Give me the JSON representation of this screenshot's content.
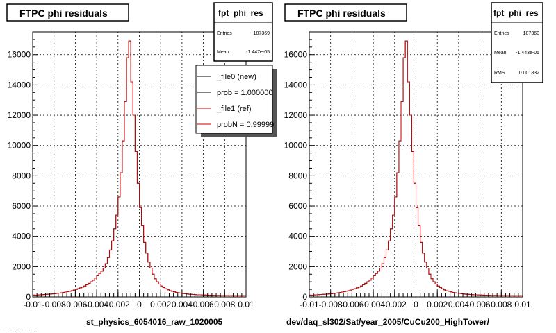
{
  "panels": [
    {
      "title": "FTPC phi residuals",
      "stats": {
        "name": "fpt_phi_res",
        "rows": [
          {
            "label": "Entries",
            "value": "187369"
          },
          {
            "label": "Mean",
            "value": "-1.447e-05"
          }
        ]
      },
      "legend": {
        "entries": [
          {
            "label": "_file0 (new)",
            "color": "#000000"
          },
          {
            "label": "prob = 1.000000",
            "color": "#000000"
          },
          {
            "label": "_file1 (ref)",
            "color": "#cc0000"
          },
          {
            "label": "probN = 0.99999",
            "color": "#cc0000"
          }
        ]
      },
      "caption": "st_physics_6054016_raw_1020005"
    },
    {
      "title": "FTPC phi residuals",
      "stats": {
        "name": "fpt_phi_res",
        "rows": [
          {
            "label": "Entries",
            "value": "187360"
          },
          {
            "label": "Mean",
            "value": "-1.443e-05"
          },
          {
            "label": "RMS",
            "value": "0.001832"
          }
        ]
      },
      "caption": "dev/daq_sl302/Sat/year_2005/CuCu200_HighTower/"
    }
  ],
  "footer_text": "... ... .. ........ ....",
  "chart_data": {
    "type": "histogram",
    "title": "FTPC phi residuals",
    "xlim": [
      -0.01,
      0.01
    ],
    "ylim": [
      0,
      17500
    ],
    "xticks": [
      -0.01,
      -0.008,
      -0.006,
      -0.004,
      -0.002,
      0,
      0.002,
      0.004,
      0.006,
      0.008,
      0.01
    ],
    "xtick_labels": [
      "-0.01",
      "-0.008",
      "-0.006",
      "-0.004",
      "-0.002",
      "0",
      "0.002",
      "0.004",
      "0.006",
      "0.008",
      "0.01"
    ],
    "yticks": [
      0,
      2000,
      4000,
      6000,
      8000,
      10000,
      12000,
      14000,
      16000
    ],
    "ytick_labels": [
      "0",
      "2000",
      "4000",
      "6000",
      "8000",
      "10000",
      "12000",
      "14000",
      "16000"
    ],
    "grid": true,
    "bin_width": 0.0002,
    "x_start": -0.01,
    "series": [
      {
        "name": "_file0 (new)",
        "color": "#000000",
        "values": [
          120,
          110,
          130,
          140,
          150,
          160,
          170,
          180,
          190,
          200,
          210,
          230,
          250,
          270,
          290,
          320,
          350,
          380,
          410,
          450,
          500,
          550,
          600,
          650,
          720,
          800,
          900,
          1000,
          1100,
          1250,
          1400,
          1550,
          1700,
          1900,
          2200,
          2600,
          3100,
          3700,
          4500,
          5400,
          6600,
          8200,
          10300,
          12900,
          15800,
          16900,
          14200,
          12000,
          9600,
          7500,
          5900,
          4700,
          3600,
          2900,
          2300,
          1900,
          1500,
          1200,
          1000,
          850,
          720,
          620,
          540,
          470,
          410,
          370,
          330,
          300,
          270,
          250,
          230,
          210,
          195,
          180,
          170,
          160,
          150,
          140,
          135,
          130,
          125,
          120,
          115,
          110,
          105,
          100,
          100,
          95,
          90,
          90,
          85,
          85,
          80,
          80,
          80,
          80,
          80,
          80,
          80,
          80
        ]
      },
      {
        "name": "_file1 (ref)",
        "color": "#cc0000",
        "values": [
          120,
          110,
          130,
          140,
          150,
          160,
          170,
          180,
          190,
          200,
          210,
          230,
          250,
          270,
          290,
          320,
          350,
          380,
          410,
          450,
          500,
          550,
          600,
          650,
          720,
          800,
          900,
          1000,
          1100,
          1250,
          1400,
          1550,
          1700,
          1900,
          2200,
          2600,
          3100,
          3700,
          4500,
          5400,
          6600,
          8200,
          10300,
          12900,
          15800,
          16900,
          14200,
          12000,
          9600,
          7500,
          5900,
          4700,
          3600,
          2900,
          2300,
          1900,
          1500,
          1200,
          1000,
          850,
          720,
          620,
          540,
          470,
          410,
          370,
          330,
          300,
          270,
          250,
          230,
          210,
          195,
          180,
          170,
          160,
          150,
          140,
          135,
          130,
          125,
          120,
          115,
          110,
          105,
          100,
          100,
          95,
          90,
          90,
          85,
          85,
          80,
          80,
          80,
          80,
          80,
          80,
          80,
          80
        ]
      }
    ]
  }
}
